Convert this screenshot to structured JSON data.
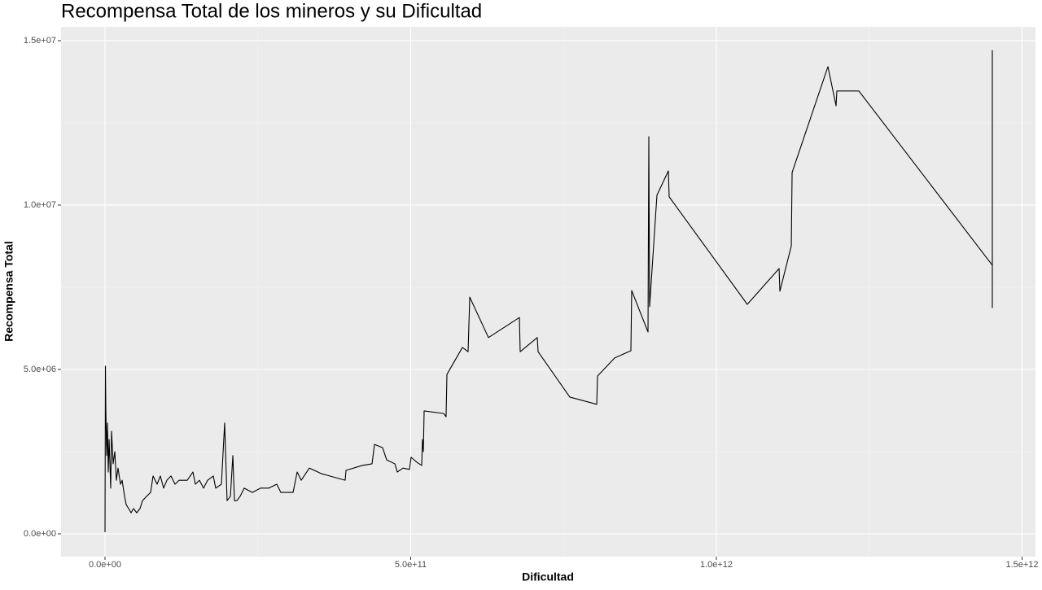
{
  "chart_data": {
    "type": "line",
    "title": "Recompensa Total de los mineros y su Dificultad",
    "x_label": "Dificultad",
    "y_label": "Recompensa Total",
    "color": "#000000",
    "grid": true,
    "xlim": [
      -71900000000.0,
      1522000000000.0
    ],
    "ylim": [
      -693000.0,
      15420000.0
    ],
    "xticks": [
      {
        "value": 0,
        "label": "0.0e+00"
      },
      {
        "value": 500000000000.0,
        "label": "5.0e+11"
      },
      {
        "value": 1000000000000.0,
        "label": "1.0e+12"
      },
      {
        "value": 1500000000000.0,
        "label": "1.5e+12"
      }
    ],
    "yticks": [
      {
        "value": 0,
        "label": "0.0e+00"
      },
      {
        "value": 5000000.0,
        "label": "5.0e+06"
      },
      {
        "value": 10000000.0,
        "label": "1.0e+07"
      },
      {
        "value": 15000000.0,
        "label": "1.5e+07"
      }
    ],
    "x": [
      0,
      670000000.0,
      1300000000.0,
      2700000000.0,
      4000000000.0,
      5300000000.0,
      6700000000.0,
      9300000000.0,
      10700000000.0,
      13300000000.0,
      16000000000.0,
      18600000000.0,
      21300000000.0,
      25300000000.0,
      28000000000.0,
      32000000000.0,
      34600000000.0,
      38600000000.0,
      42600000000.0,
      46600000000.0,
      51900000000.0,
      57300000000.0,
      61300000000.0,
      67900000000.0,
      74600000000.0,
      78600000000.0,
      85200000000.0,
      90500000000.0,
      95900000000.0,
      101200000000.0,
      107900000000.0,
      114500000000.0,
      121200000000.0,
      134500000000.0,
      143800000000.0,
      147800000000.0,
      154500000000.0,
      161100000000.0,
      167800000000.0,
      177100000000.0,
      181100000000.0,
      190400000000.0,
      195700000000.0,
      199700000000.0,
      205100000000.0,
      209100000000.0,
      211700000000.0,
      215700000000.0,
      221000000000.0,
      227700000000.0,
      241000000000.0,
      254300000000.0,
      267600000000.0,
      281000000000.0,
      287600000000.0,
      307600000000.0,
      314300000000.0,
      320900000000.0,
      334200000000.0,
      354200000000.0,
      367500000000.0,
      392800000000.0,
      394200000000.0,
      420800000000.0,
      436800000000.0,
      440800000000.0,
      454100000000.0,
      460700000000.0,
      474100000000.0,
      478100000000.0,
      487400000000.0,
      498000000000.0,
      500700000000.0,
      510000000000.0,
      518000000000.0,
      519300000000.0,
      520700000000.0,
      522000000000.0,
      554000000000.0,
      557900000000.0,
      559300000000.0,
      584600000000.0,
      593900000000.0,
      596600000000.0,
      627200000000.0,
      677800000000.0,
      679100000000.0,
      707100000000.0,
      708400000000.0,
      760300000000.0,
      804300000000.0,
      805600000000.0,
      833600000000.0,
      860200000000.0,
      861500000000.0,
      888200000000.0,
      889500000000.0,
      890800000000.0,
      902800000000.0,
      921500000000.0,
      922800000000.0,
      1050600000000.0,
      1102600000000.0,
      1103900000000.0,
      1122600000000.0,
      1123900000000.0,
      1182500000000.0,
      1195800000000.0,
      1197100000000.0,
      1233100000000.0,
      1451400000000.0,
      1451400000000.0,
      1451400000000.0,
      1451400000000.0
    ],
    "values": [
      50000.0,
      5100000.0,
      3860000.0,
      2380000.0,
      3370000.0,
      1880000.0,
      2870000.0,
      1390000.0,
      3120000.0,
      2130000.0,
      2500000.0,
      1630000.0,
      2000000.0,
      1510000.0,
      1630000.0,
      1140000.0,
      890000.0,
      770000.0,
      640000.0,
      770000.0,
      640000.0,
      770000.0,
      1010000.0,
      1140000.0,
      1260000.0,
      1760000.0,
      1510000.0,
      1760000.0,
      1390000.0,
      1630000.0,
      1760000.0,
      1510000.0,
      1630000.0,
      1630000.0,
      1880000.0,
      1510000.0,
      1630000.0,
      1390000.0,
      1630000.0,
      1760000.0,
      1390000.0,
      1510000.0,
      3370000.0,
      1010000.0,
      1140000.0,
      2380000.0,
      1010000.0,
      1010000.0,
      1140000.0,
      1390000.0,
      1260000.0,
      1390000.0,
      1390000.0,
      1510000.0,
      1260000.0,
      1260000.0,
      1880000.0,
      1630000.0,
      2000000.0,
      1830000.0,
      1760000.0,
      1630000.0,
      1930000.0,
      2080000.0,
      2130000.0,
      2720000.0,
      2620000.0,
      2250000.0,
      2130000.0,
      1880000.0,
      2000000.0,
      1960000.0,
      2330000.0,
      2180000.0,
      2080000.0,
      2870000.0,
      2500000.0,
      3740000.0,
      3660000.0,
      3560000.0,
      4850000.0,
      5670000.0,
      5540000.0,
      7200000.0,
      5970000.0,
      6580000.0,
      5540000.0,
      5970000.0,
      5540000.0,
      4160000.0,
      3940000.0,
      4800000.0,
      5350000.0,
      5570000.0,
      7400000.0,
      6140000.0,
      12080000.0,
      6910000.0,
      10300000.0,
      11040000.0,
      10250000.0,
      6980000.0,
      8070000.0,
      7380000.0,
      8760000.0,
      10990000.0,
      14210000.0,
      13020000.0,
      13470000.0,
      13470000.0,
      8170000.0,
      14700000.0,
      6880000.0,
      8170000.0
    ]
  }
}
